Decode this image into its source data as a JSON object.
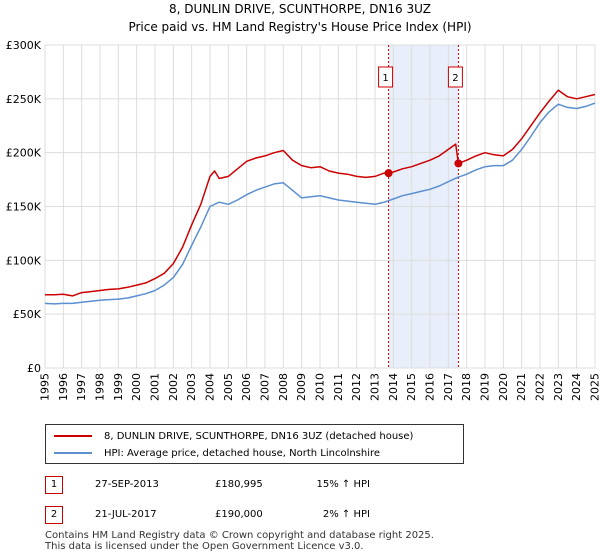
{
  "chart_data": {
    "type": "line",
    "title": "8, DUNLIN DRIVE, SCUNTHORPE, DN16 3UZ",
    "subtitle": "Price paid vs. HM Land Registry's House Price Index (HPI)",
    "xlabel": "",
    "ylabel": "",
    "xlim": [
      1995,
      2025
    ],
    "ylim": [
      0,
      300000
    ],
    "grid": true,
    "x_ticks": [
      "1995",
      "1996",
      "1997",
      "1998",
      "1999",
      "2000",
      "2001",
      "2002",
      "2003",
      "2004",
      "2005",
      "2006",
      "2007",
      "2008",
      "2009",
      "2010",
      "2011",
      "2012",
      "2013",
      "2014",
      "2015",
      "2016",
      "2017",
      "2018",
      "2019",
      "2020",
      "2021",
      "2022",
      "2023",
      "2024",
      "2025"
    ],
    "y_ticks": [
      {
        "value": 0,
        "label": "£0"
      },
      {
        "value": 50000,
        "label": "£50K"
      },
      {
        "value": 100000,
        "label": "£100K"
      },
      {
        "value": 150000,
        "label": "£150K"
      },
      {
        "value": 200000,
        "label": "£200K"
      },
      {
        "value": 250000,
        "label": "£250K"
      },
      {
        "value": 300000,
        "label": "£300K"
      }
    ],
    "series": [
      {
        "name": "8, DUNLIN DRIVE, SCUNTHORPE, DN16 3UZ (detached house)",
        "color": "#cc0000",
        "x": [
          1995,
          1995.5,
          1996,
          1996.5,
          1997,
          1997.5,
          1998,
          1998.5,
          1999,
          1999.5,
          2000,
          2000.5,
          2001,
          2001.5,
          2002,
          2002.5,
          2003,
          2003.5,
          2004,
          2004.25,
          2004.5,
          2005,
          2005.5,
          2006,
          2006.5,
          2007,
          2007.5,
          2008,
          2008.5,
          2009,
          2009.5,
          2010,
          2010.5,
          2011,
          2011.5,
          2012,
          2012.5,
          2013,
          2013.5,
          2013.74,
          2014,
          2014.5,
          2015,
          2015.5,
          2016,
          2016.5,
          2017,
          2017.4,
          2017.55,
          2018,
          2018.5,
          2019,
          2019.5,
          2020,
          2020.5,
          2021,
          2021.5,
          2022,
          2022.5,
          2023,
          2023.5,
          2024,
          2024.5,
          2025
        ],
        "values": [
          68000,
          68000,
          68500,
          67000,
          70000,
          71000,
          72000,
          73000,
          73500,
          75000,
          77000,
          79000,
          83000,
          88000,
          97000,
          112000,
          133000,
          152000,
          178000,
          183000,
          176000,
          178000,
          185000,
          192000,
          195000,
          197000,
          200000,
          202000,
          193000,
          188000,
          186000,
          187000,
          183000,
          181000,
          180000,
          178000,
          177000,
          178000,
          181000,
          180995,
          182000,
          185000,
          187000,
          190000,
          193000,
          197000,
          203000,
          208000,
          190000,
          193000,
          197000,
          200000,
          198000,
          197000,
          203000,
          213000,
          225000,
          237000,
          248000,
          258000,
          252000,
          250000,
          252000,
          254000
        ]
      },
      {
        "name": "HPI: Average price, detached house, North Lincolnshire",
        "color": "#5b8fd0",
        "x": [
          1995,
          1995.5,
          1996,
          1996.5,
          1997,
          1997.5,
          1998,
          1998.5,
          1999,
          1999.5,
          2000,
          2000.5,
          2001,
          2001.5,
          2002,
          2002.5,
          2003,
          2003.5,
          2004,
          2004.5,
          2005,
          2005.5,
          2006,
          2006.5,
          2007,
          2007.5,
          2008,
          2008.5,
          2009,
          2009.5,
          2010,
          2010.5,
          2011,
          2011.5,
          2012,
          2012.5,
          2013,
          2013.5,
          2014,
          2014.5,
          2015,
          2015.5,
          2016,
          2016.5,
          2017,
          2017.5,
          2018,
          2018.5,
          2019,
          2019.5,
          2020,
          2020.5,
          2021,
          2021.5,
          2022,
          2022.5,
          2023,
          2023.5,
          2024,
          2024.5,
          2025
        ],
        "values": [
          60000,
          59500,
          60000,
          60000,
          61000,
          62000,
          63000,
          63500,
          64000,
          65000,
          67000,
          69000,
          72000,
          77000,
          84000,
          96000,
          114000,
          131000,
          150000,
          154000,
          152000,
          156000,
          161000,
          165000,
          168000,
          171000,
          172000,
          165000,
          158000,
          159000,
          160000,
          158000,
          156000,
          155000,
          154000,
          153000,
          152000,
          154000,
          157000,
          160000,
          162000,
          164000,
          166000,
          169000,
          173000,
          177000,
          180000,
          184000,
          187000,
          188000,
          188000,
          193000,
          203000,
          215000,
          228000,
          238000,
          245000,
          242000,
          241000,
          243000,
          246000
        ]
      }
    ],
    "annotations": [
      {
        "label": "1",
        "date": "27-SEP-2013",
        "x": 2013.74,
        "y": 180995,
        "price": "£180,995",
        "hpi": "15% ↑ HPI"
      },
      {
        "label": "2",
        "date": "21-JUL-2017",
        "x": 2017.55,
        "y": 190000,
        "price": "£190,000",
        "hpi": "2% ↑ HPI"
      }
    ],
    "shaded_region": [
      2013.74,
      2017.55
    ],
    "colors": {
      "grid": "#dddddd",
      "shade": "#e8eefa",
      "marker_line": "#cc0000"
    }
  },
  "legend": {
    "items": [
      {
        "label": "8, DUNLIN DRIVE, SCUNTHORPE, DN16 3UZ (detached house)",
        "color": "#cc0000"
      },
      {
        "label": "HPI: Average price, detached house, North Lincolnshire",
        "color": "#5b8fd0"
      }
    ]
  },
  "transactions": [
    {
      "num": "1",
      "date": "27-SEP-2013",
      "price": "£180,995",
      "hpi": "15% ↑ HPI"
    },
    {
      "num": "2",
      "date": "21-JUL-2017",
      "price": "£190,000",
      "hpi": "2% ↑ HPI"
    }
  ],
  "footer": {
    "line1": "Contains HM Land Registry data © Crown copyright and database right 2025.",
    "line2": "This data is licensed under the Open Government Licence v3.0."
  }
}
